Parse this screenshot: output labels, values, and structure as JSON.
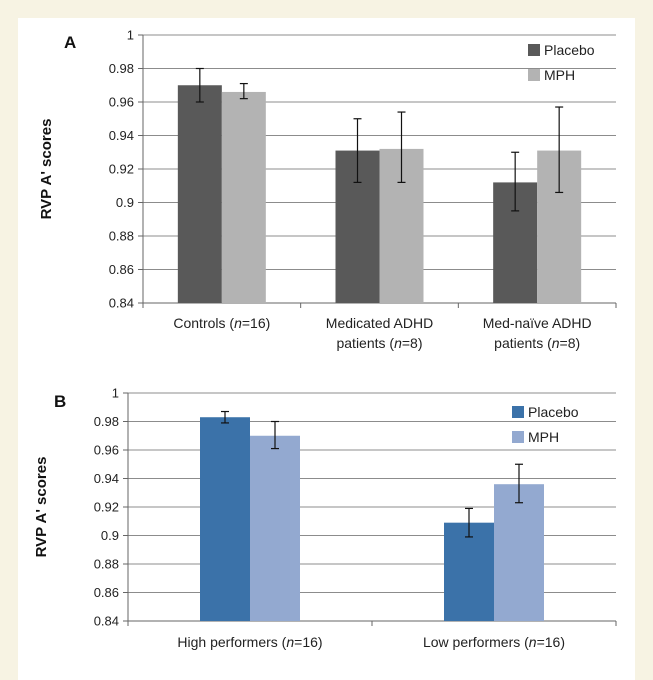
{
  "chart_data": [
    {
      "panel_label": "A",
      "type": "bar",
      "categories": [
        {
          "line1": "Controls (",
          "italic1": "n",
          "tail1": "=16)",
          "line2": "",
          "italic2": "",
          "tail2": ""
        },
        {
          "line1": "Medicated ADHD",
          "italic1": "",
          "tail1": "",
          "line2": "patients (",
          "italic2": "n",
          "tail2": "=8)"
        },
        {
          "line1": "Med-naïve ADHD",
          "italic1": "",
          "tail1": "",
          "line2": "patients (",
          "italic2": "n",
          "tail2": "=8)"
        }
      ],
      "series": [
        {
          "name": "Placebo",
          "color": "#595959",
          "values": [
            0.97,
            0.931,
            0.912
          ],
          "error_low": [
            0.96,
            0.912,
            0.895
          ],
          "error_high": [
            0.98,
            0.95,
            0.93
          ]
        },
        {
          "name": "MPH",
          "color": "#b3b3b3",
          "values": [
            0.966,
            0.932,
            0.931
          ],
          "error_low": [
            0.962,
            0.912,
            0.906
          ],
          "error_high": [
            0.971,
            0.954,
            0.957
          ]
        }
      ],
      "ylabel": "RVP A' scores",
      "ylim": [
        0.84,
        1
      ],
      "yticks": [
        "0.84",
        "0.86",
        "0.88",
        "0.9",
        "0.92",
        "0.94",
        "0.96",
        "0.98",
        "1"
      ],
      "grid": true,
      "legend_position": "top-right"
    },
    {
      "panel_label": "B",
      "type": "bar",
      "categories": [
        {
          "line1": "High performers (",
          "italic1": "n",
          "tail1": "=16)",
          "line2": "",
          "italic2": "",
          "tail2": ""
        },
        {
          "line1": "Low performers (",
          "italic1": "n",
          "tail1": "=16)",
          "line2": "",
          "italic2": "",
          "tail2": ""
        }
      ],
      "series": [
        {
          "name": "Placebo",
          "color": "#3b72a9",
          "values": [
            0.983,
            0.909
          ],
          "error_low": [
            0.979,
            0.899
          ],
          "error_high": [
            0.987,
            0.919
          ]
        },
        {
          "name": "MPH",
          "color": "#93a9d0",
          "values": [
            0.97,
            0.936
          ],
          "error_low": [
            0.961,
            0.923
          ],
          "error_high": [
            0.98,
            0.95
          ]
        }
      ],
      "ylabel": "RVP A' scores",
      "ylim": [
        0.84,
        1
      ],
      "yticks": [
        "0.84",
        "0.86",
        "0.88",
        "0.9",
        "0.92",
        "0.94",
        "0.96",
        "0.98",
        "1"
      ],
      "grid": true,
      "legend_position": "top-right"
    }
  ]
}
